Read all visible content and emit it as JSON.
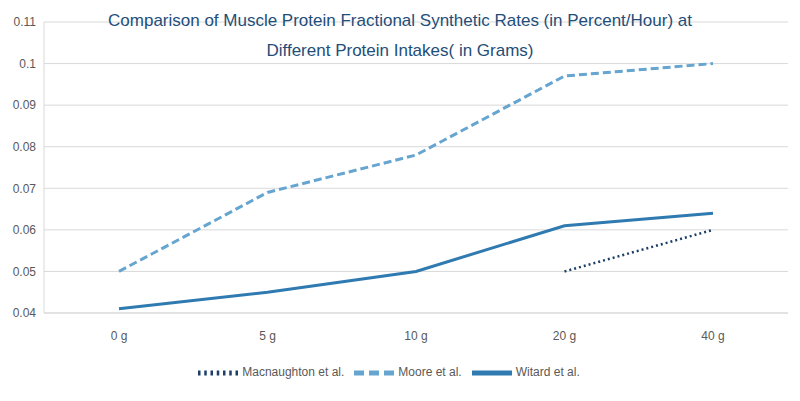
{
  "chart_data": {
    "type": "line",
    "title": "Comparison of Muscle Protein Fractional Synthetic Rates (in Percent/Hour) at Different Protein Intakes( in Grams)",
    "categories": [
      "0 g",
      "5 g",
      "10 g",
      "20 g",
      "40 g"
    ],
    "series": [
      {
        "name": "Witard et al.",
        "color": "#2f7ab0",
        "line_style": "solid",
        "values": [
          0.041,
          0.045,
          0.05,
          0.061,
          0.064
        ]
      },
      {
        "name": "Moore et al.",
        "color": "#65a5d0",
        "line_style": "dashed",
        "values": [
          0.05,
          0.069,
          0.078,
          0.097,
          0.1
        ]
      },
      {
        "name": "Macnaughton et al.",
        "color": "#1d3f66",
        "line_style": "dotted",
        "values": [
          null,
          null,
          null,
          0.05,
          0.06
        ]
      }
    ],
    "ylim": [
      0.04,
      0.11
    ],
    "yticks": [
      0.04,
      0.05,
      0.06,
      0.07,
      0.08,
      0.09,
      0.1,
      0.11
    ],
    "grid": true,
    "legend": "bottom"
  }
}
